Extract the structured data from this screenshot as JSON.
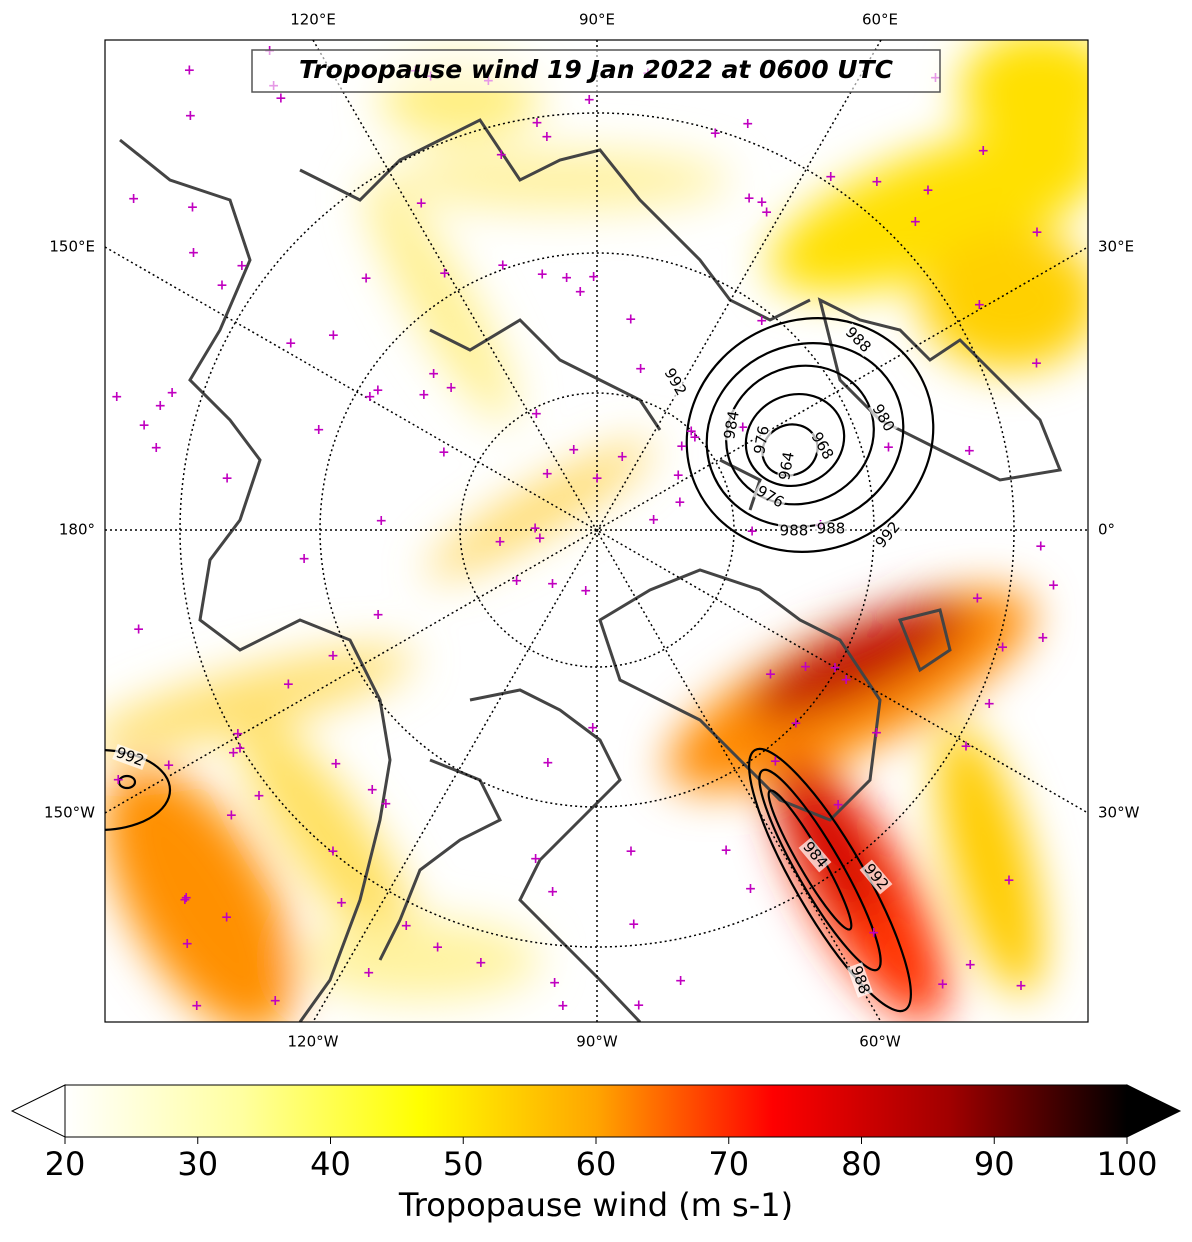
{
  "title": "Tropopause wind 19 Jan 2022 at 0600 UTC",
  "lon_labels": {
    "top": [
      "120°E",
      "90°E",
      "60°E"
    ],
    "left": [
      "150°E",
      "180°",
      "150°W"
    ],
    "right": [
      "30°E",
      "0°",
      "30°W"
    ],
    "bottom": [
      "120°W",
      "90°W",
      "60°W"
    ]
  },
  "contour_labels": [
    "992",
    "984",
    "976",
    "964",
    "968",
    "988",
    "980",
    "976",
    "988",
    "988",
    "992",
    "992",
    "984",
    "992",
    "988"
  ],
  "colorbar": {
    "label": "Tropopause wind (m s-1)",
    "lim": [
      20,
      100
    ],
    "ticks": [
      20,
      30,
      40,
      50,
      60,
      70,
      80,
      90,
      100
    ],
    "colors": [
      "#ffffff",
      "#ffffa0",
      "#ffff00",
      "#ffa500",
      "#ff0000",
      "#a00000",
      "#000000"
    ]
  }
}
